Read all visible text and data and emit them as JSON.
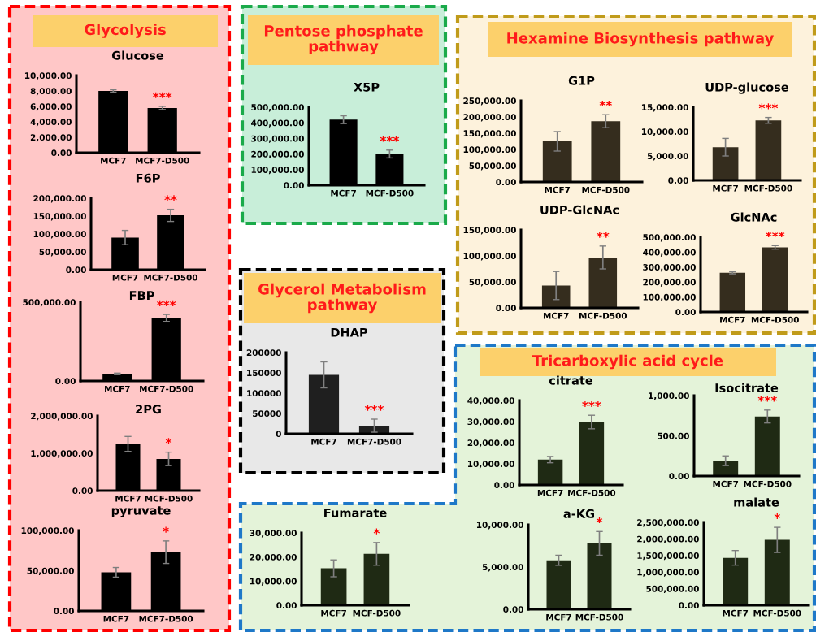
{
  "chart_data": [
    {
      "type": "other",
      "title": "Glycolysis"
    },
    {
      "type": "bar",
      "title": "Glucose",
      "categories": [
        "MCF7",
        "MCF7-D500"
      ],
      "values": [
        8000,
        5800
      ],
      "errors": [
        150,
        200
      ],
      "color": "#000000",
      "ylim": [
        0,
        10000
      ],
      "yticks": [
        {
          "value": 0,
          "label": "0.00"
        },
        {
          "value": 2000,
          "label": "2,000.00"
        },
        {
          "value": 4000,
          "label": "4,000.00"
        },
        {
          "value": 6000,
          "label": "6,000.00"
        },
        {
          "value": 8000,
          "label": "8,000.00"
        },
        {
          "value": 10000,
          "label": "10,000.00"
        }
      ],
      "annotations": [
        "***"
      ]
    },
    {
      "type": "bar",
      "title": "F6P",
      "categories": [
        "MCF7",
        "MCF7-D500"
      ],
      "values": [
        90000,
        152000
      ],
      "errors": [
        20000,
        17000
      ],
      "color": "#000000",
      "ylim": [
        0,
        200000
      ],
      "yticks": [
        {
          "value": 0,
          "label": "0.00"
        },
        {
          "value": 50000,
          "label": "50,000.00"
        },
        {
          "value": 100000,
          "label": "100,000.00"
        },
        {
          "value": 150000,
          "label": "150,000.00"
        },
        {
          "value": 200000,
          "label": "200,000.00"
        }
      ],
      "annotations": [
        "**"
      ]
    },
    {
      "type": "bar",
      "title": "FBP",
      "categories": [
        "MCF7",
        "MCF7-D500"
      ],
      "values": [
        45000,
        400000
      ],
      "errors": [
        5000,
        22000
      ],
      "color": "#000000",
      "ylim": [
        0,
        500000
      ],
      "yticks": [
        {
          "value": 0,
          "label": "0.00"
        },
        {
          "value": 500000,
          "label": "500,000.00"
        }
      ],
      "annotations": [
        "***"
      ]
    },
    {
      "type": "bar",
      "title": "2PG",
      "categories": [
        "MCF7",
        "MCF-D500"
      ],
      "values": [
        1250000,
        850000
      ],
      "errors": [
        200000,
        180000
      ],
      "color": "#000000",
      "ylim": [
        0,
        2000000
      ],
      "yticks": [
        {
          "value": 0,
          "label": "0.00"
        },
        {
          "value": 1000000,
          "label": "1,000,000.00"
        },
        {
          "value": 2000000,
          "label": "2,000,000.00"
        }
      ],
      "annotations": [
        "*"
      ]
    },
    {
      "type": "bar",
      "title": "pyruvate",
      "categories": [
        "MCF7",
        "MCF7-D500"
      ],
      "values": [
        48000,
        73000
      ],
      "errors": [
        6000,
        14000
      ],
      "color": "#000000",
      "ylim": [
        0,
        100000
      ],
      "yticks": [
        {
          "value": 0,
          "label": "0.00"
        },
        {
          "value": 50000,
          "label": "50,000.00"
        },
        {
          "value": 100000,
          "label": "100,000.00"
        }
      ],
      "annotations": [
        "*"
      ]
    },
    {
      "type": "other",
      "title": "Pentose phosphate pathway"
    },
    {
      "type": "bar",
      "title": "X5P",
      "categories": [
        "MCF7",
        "MCF-D500"
      ],
      "values": [
        420000,
        200000
      ],
      "errors": [
        25000,
        25000
      ],
      "color": "#000000",
      "ylim": [
        0,
        500000
      ],
      "yticks": [
        {
          "value": 0,
          "label": "0.00"
        },
        {
          "value": 100000,
          "label": "100,000.00"
        },
        {
          "value": 200000,
          "label": "200,000.00"
        },
        {
          "value": 300000,
          "label": "300,000.00"
        },
        {
          "value": 400000,
          "label": "400,000.00"
        },
        {
          "value": 500000,
          "label": "500,000.00"
        }
      ],
      "annotations": [
        "***"
      ]
    },
    {
      "type": "other",
      "title": "Glycerol Metabolism pathway"
    },
    {
      "type": "bar",
      "title": "DHAP",
      "categories": [
        "MCF7",
        "MCF7-D500"
      ],
      "values": [
        145000,
        20000
      ],
      "errors": [
        32000,
        16000
      ],
      "color": "#1f1f1f",
      "ylim": [
        0,
        200000
      ],
      "yticks": [
        0,
        50000,
        100000,
        150000,
        200000
      ],
      "annotations": [
        "***"
      ]
    },
    {
      "type": "other",
      "title": "Hexamine Biosynthesis pathway"
    },
    {
      "type": "bar",
      "title": "G1P",
      "categories": [
        "MCF7",
        "MCF-D500"
      ],
      "values": [
        125000,
        187000
      ],
      "errors": [
        30000,
        20000
      ],
      "color": "#352d1e",
      "ylim": [
        0,
        250000
      ],
      "yticks": [
        {
          "value": 0,
          "label": "0.00"
        },
        {
          "value": 50000,
          "label": "50,000.00"
        },
        {
          "value": 100000,
          "label": "100,000.00"
        },
        {
          "value": 150000,
          "label": "150,000.00"
        },
        {
          "value": 200000,
          "label": "200,000.00"
        },
        {
          "value": 250000,
          "label": "250,000.00"
        }
      ],
      "annotations": [
        "**"
      ]
    },
    {
      "type": "bar",
      "title": "UDP-glucose",
      "categories": [
        "MCF7",
        "MCF-D500"
      ],
      "values": [
        6800,
        12300
      ],
      "errors": [
        1800,
        600
      ],
      "color": "#352d1e",
      "ylim": [
        0,
        15000
      ],
      "yticks": [
        {
          "value": 0,
          "label": "0.00"
        },
        {
          "value": 5000,
          "label": "5,000.00"
        },
        {
          "value": 10000,
          "label": "10,000.00"
        },
        {
          "value": 15000,
          "label": "15,000.00"
        }
      ],
      "annotations": [
        "***"
      ]
    },
    {
      "type": "bar",
      "title": "UDP-GlcNAc",
      "categories": [
        "MCF7",
        "MCF-D500"
      ],
      "values": [
        43000,
        97000
      ],
      "errors": [
        27000,
        22000
      ],
      "color": "#352d1e",
      "ylim": [
        0,
        150000
      ],
      "yticks": [
        {
          "value": 0,
          "label": "0.00"
        },
        {
          "value": 50000,
          "label": "50,000.00"
        },
        {
          "value": 100000,
          "label": "100,000.00"
        },
        {
          "value": 150000,
          "label": "150,000.00"
        }
      ],
      "annotations": [
        "**"
      ]
    },
    {
      "type": "bar",
      "title": "GlcNAc",
      "categories": [
        "MCF7",
        "MCF-D500"
      ],
      "values": [
        262000,
        432000
      ],
      "errors": [
        7000,
        12000
      ],
      "color": "#352d1e",
      "ylim": [
        0,
        500000
      ],
      "yticks": [
        {
          "value": 0,
          "label": "0.00"
        },
        {
          "value": 100000,
          "label": "100,000.00"
        },
        {
          "value": 200000,
          "label": "200,000.00"
        },
        {
          "value": 300000,
          "label": "300,000.00"
        },
        {
          "value": 400000,
          "label": "400,000.00"
        },
        {
          "value": 500000,
          "label": "500,000.00"
        }
      ],
      "annotations": [
        "***"
      ]
    },
    {
      "type": "other",
      "title": "Tricarboxylic acid cycle"
    },
    {
      "type": "bar",
      "title": "citrate",
      "categories": [
        "MCF7",
        "MCF-D500"
      ],
      "values": [
        12000,
        29800
      ],
      "errors": [
        1500,
        3200
      ],
      "color": "#1f2a14",
      "ylim": [
        0,
        40000
      ],
      "yticks": [
        {
          "value": 0,
          "label": "0.00"
        },
        {
          "value": 10000,
          "label": "10,000.00"
        },
        {
          "value": 20000,
          "label": "20,000.00"
        },
        {
          "value": 30000,
          "label": "30,000.00"
        },
        {
          "value": 40000,
          "label": "40,000.00"
        }
      ],
      "annotations": [
        "***"
      ]
    },
    {
      "type": "bar",
      "title": "Isocitrate",
      "categories": [
        "MCF7",
        "MCF-D500"
      ],
      "values": [
        190,
        740
      ],
      "errors": [
        60,
        80
      ],
      "color": "#1f2a14",
      "ylim": [
        0,
        1000
      ],
      "yticks": [
        {
          "value": 0,
          "label": "0.00"
        },
        {
          "value": 500,
          "label": "500.00"
        },
        {
          "value": 1000,
          "label": "1,000.00"
        }
      ],
      "annotations": [
        "***"
      ]
    },
    {
      "type": "bar",
      "title": "Fumarate",
      "categories": [
        "MCF7",
        "MCF-D500"
      ],
      "values": [
        15300,
        21300
      ],
      "errors": [
        3500,
        4700
      ],
      "color": "#1f2a14",
      "ylim": [
        0,
        30000
      ],
      "yticks": [
        {
          "value": 0,
          "label": "0.00"
        },
        {
          "value": 10000,
          "label": "10,000.00"
        },
        {
          "value": 20000,
          "label": "20,000.00"
        },
        {
          "value": 30000,
          "label": "30,000.00"
        }
      ],
      "annotations": [
        "*"
      ]
    },
    {
      "type": "bar",
      "title": "a-KG",
      "categories": [
        "MCF7",
        "MCF-D500"
      ],
      "values": [
        5800,
        7800
      ],
      "errors": [
        600,
        1400
      ],
      "color": "#1f2a14",
      "ylim": [
        0,
        10000
      ],
      "yticks": [
        {
          "value": 0,
          "label": "0.00"
        },
        {
          "value": 5000,
          "label": "5,000.00"
        },
        {
          "value": 10000,
          "label": "10,000.00"
        }
      ],
      "annotations": [
        "*"
      ]
    },
    {
      "type": "bar",
      "title": "malate",
      "categories": [
        "MCF7",
        "MCF-D500"
      ],
      "values": [
        1430000,
        1970000
      ],
      "errors": [
        220000,
        380000
      ],
      "color": "#1f2a14",
      "ylim": [
        0,
        2500000
      ],
      "yticks": [
        {
          "value": 0,
          "label": "0.00"
        },
        {
          "value": 500000,
          "label": "500,000.00"
        },
        {
          "value": 1000000,
          "label": "1,000,000.00"
        },
        {
          "value": 1500000,
          "label": "1,500,000.00"
        },
        {
          "value": 2000000,
          "label": "2,000,000.00"
        },
        {
          "value": 2500000,
          "label": "2,500,000.00"
        }
      ],
      "annotations": [
        "*"
      ]
    }
  ]
}
